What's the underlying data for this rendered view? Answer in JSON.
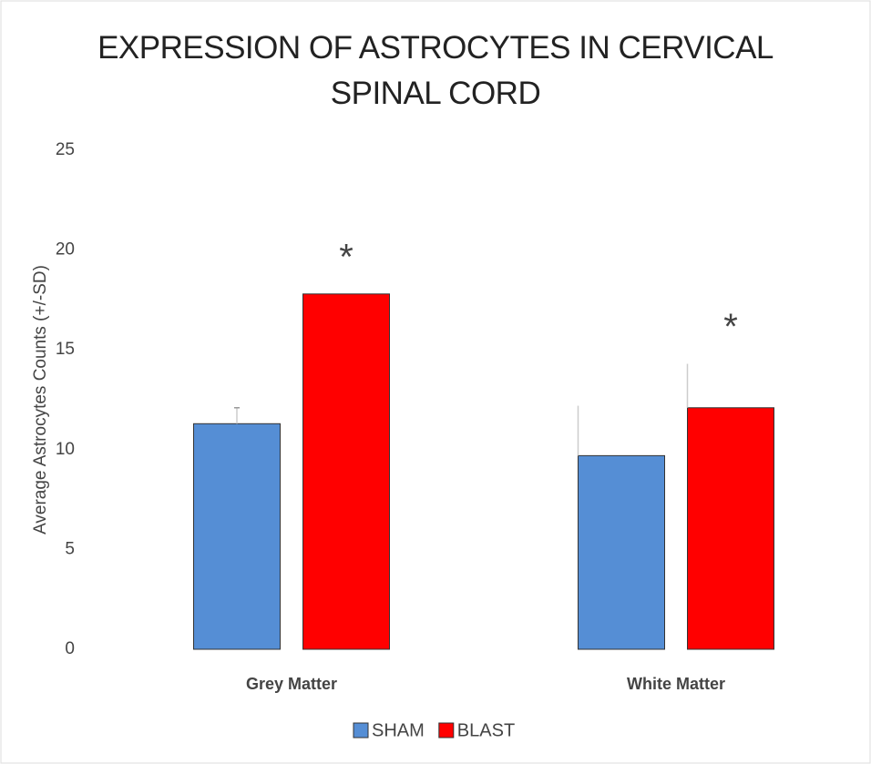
{
  "chart_data": {
    "type": "bar",
    "title": "EXPRESSION OF ASTROCYTES IN CERVICAL SPINAL CORD",
    "y_label": "Average Astrocytes Counts (+/-SD)",
    "categories": [
      "Grey Matter",
      "White Matter"
    ],
    "series": [
      {
        "name": "SHAM",
        "color": "#558ed5",
        "values": [
          11.3,
          9.7
        ],
        "errors": [
          0.8,
          2.5
        ]
      },
      {
        "name": "BLAST",
        "color": "#ff0000",
        "values": [
          17.8,
          12.1
        ],
        "errors": [
          null,
          2.2
        ],
        "annotations": [
          "*",
          "*"
        ]
      }
    ],
    "ylim": [
      0,
      25
    ],
    "yticks": [
      0,
      5,
      10,
      15,
      20,
      25
    ],
    "grid": false,
    "legend": "bottom"
  }
}
